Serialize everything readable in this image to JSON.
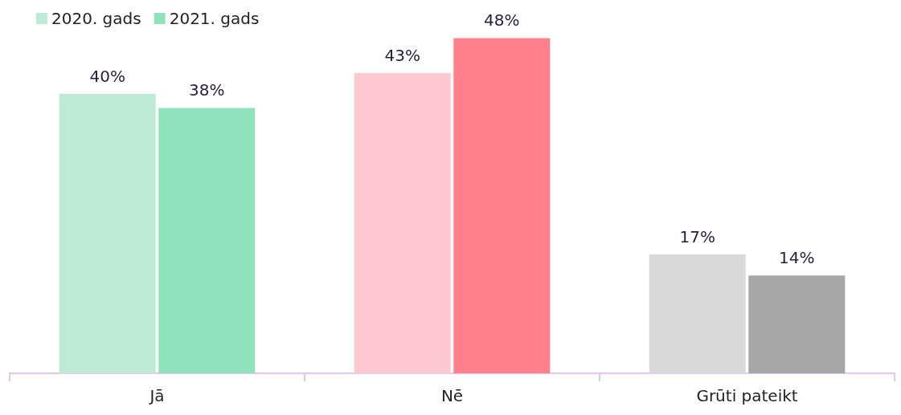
{
  "chart_data": {
    "type": "bar",
    "categories": [
      "Jā",
      "Nē",
      "Grūti pateikt"
    ],
    "series": [
      {
        "name": "2020. gads",
        "color": "#bdebd6",
        "colors": [
          "#bdebd6",
          "#ffc9cf",
          "#d9d9d9"
        ],
        "values": [
          40,
          43,
          17
        ],
        "value_labels": [
          "40%",
          "43%",
          "17%"
        ]
      },
      {
        "name": "2021. gads",
        "color": "#8fe3ba",
        "colors": [
          "#8fe3ba",
          "#ff7f8b",
          "#a6a6a6"
        ],
        "values": [
          38,
          48,
          14
        ],
        "value_labels": [
          "38%",
          "48%",
          "14%"
        ]
      }
    ],
    "legend": "top left",
    "grid": false
  }
}
